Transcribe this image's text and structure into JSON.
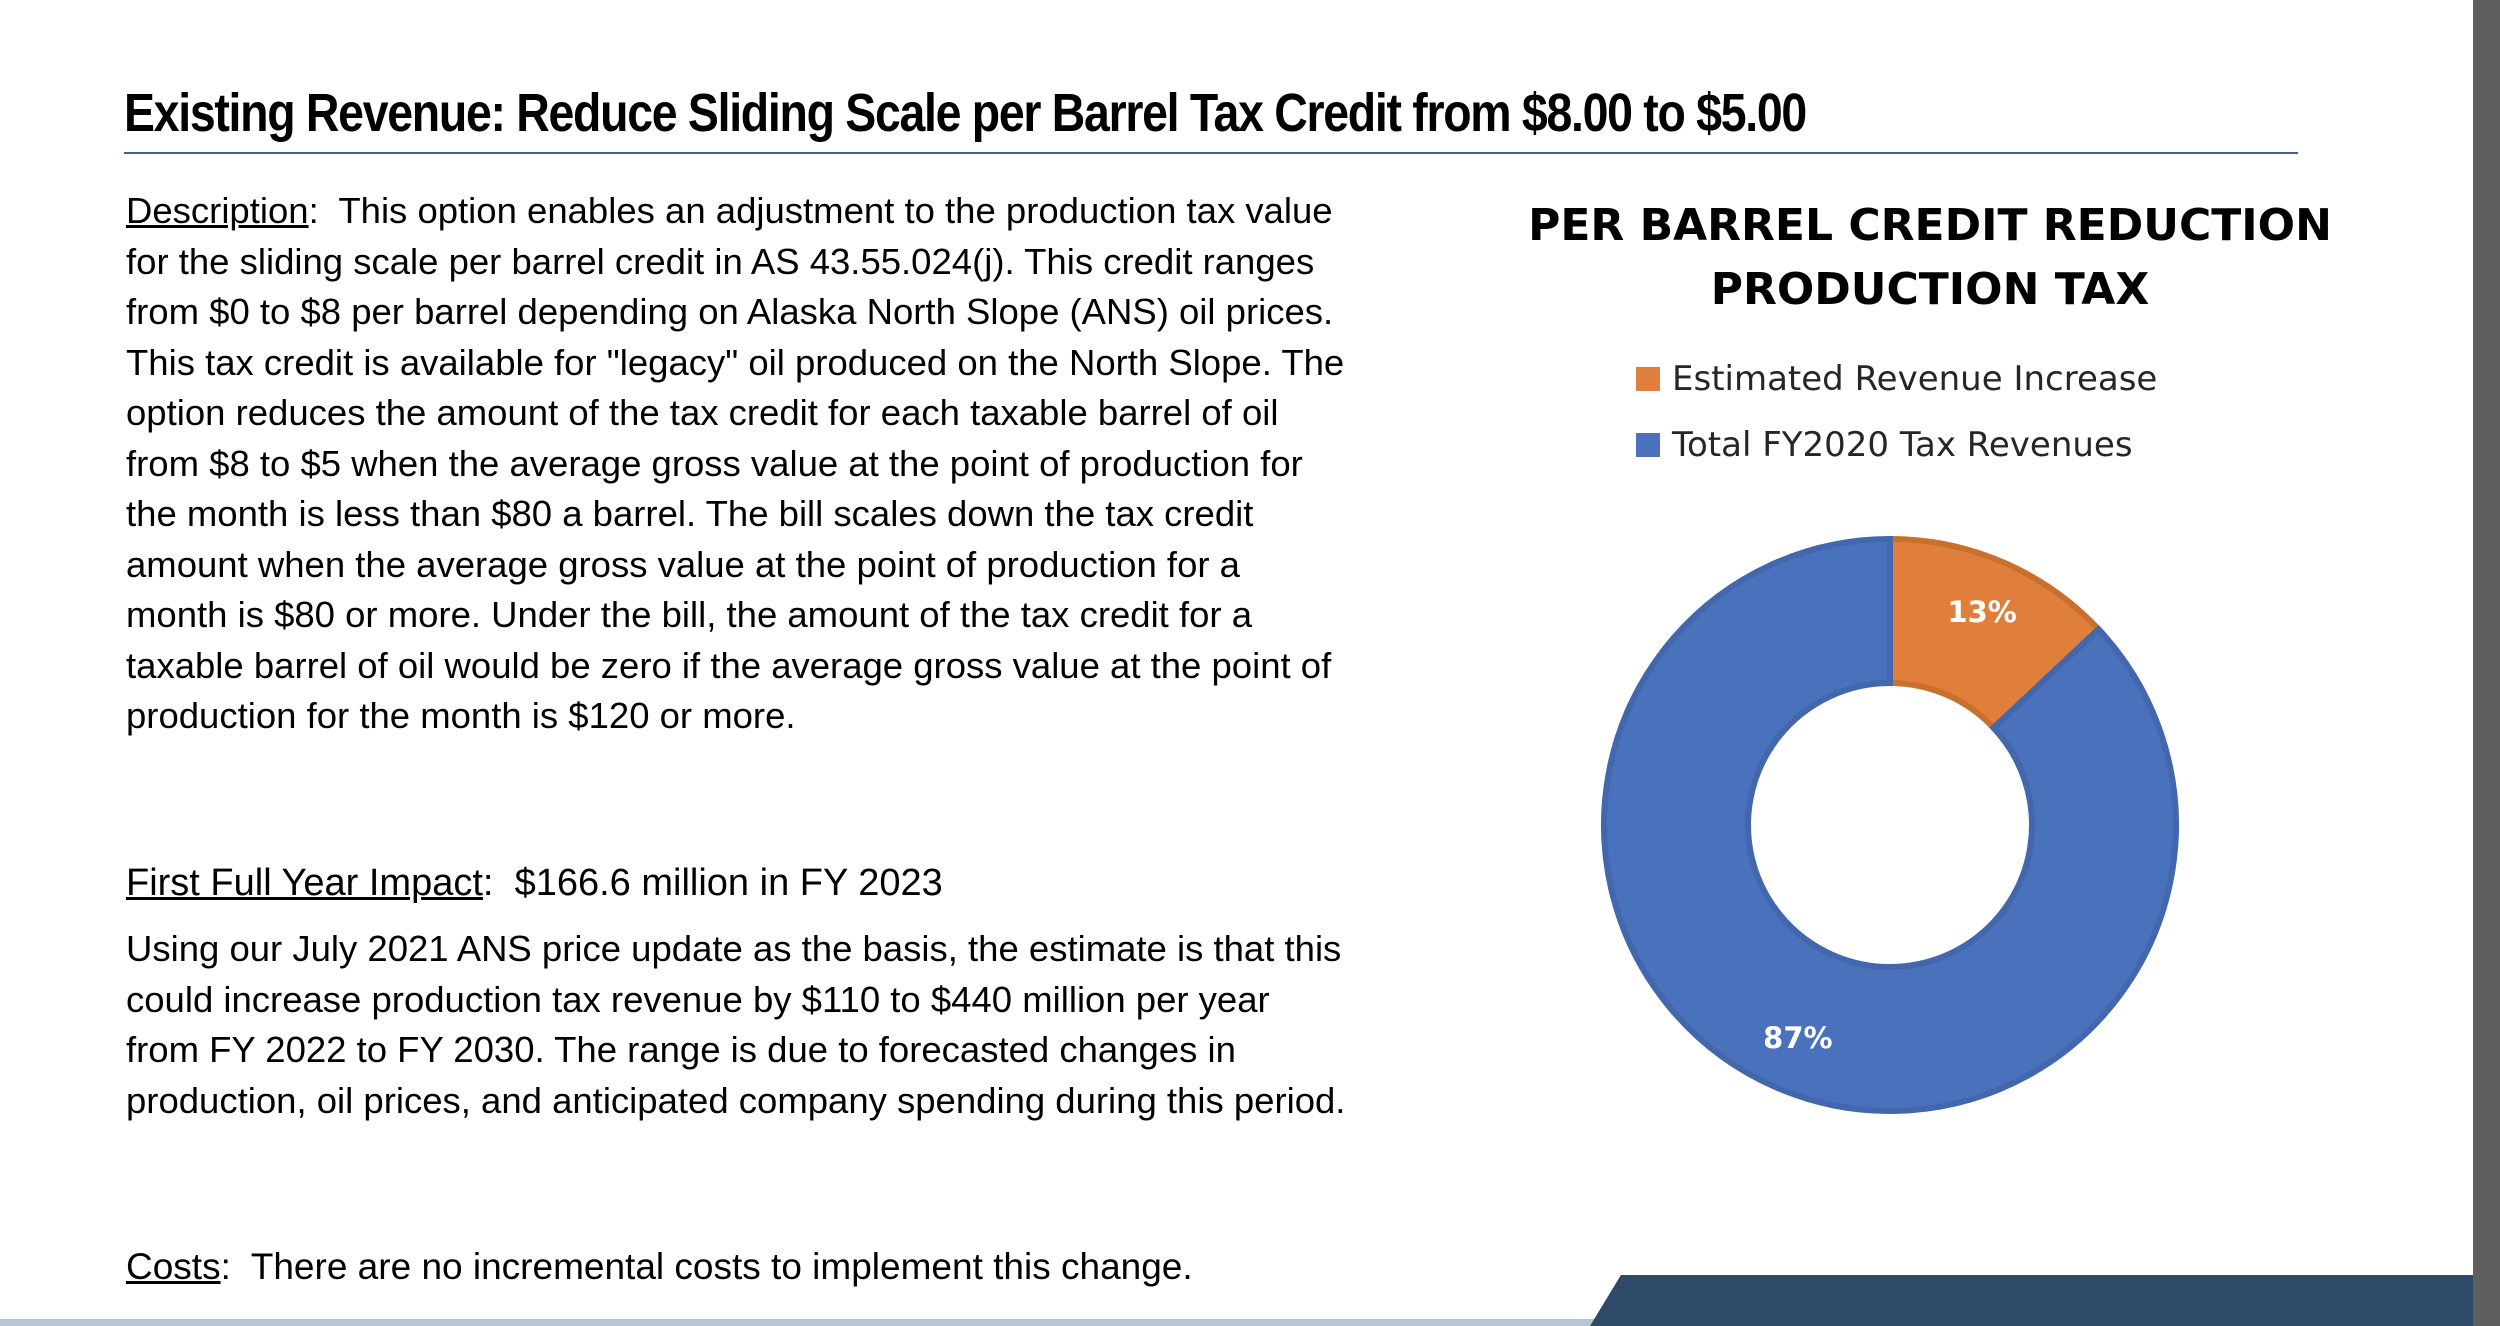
{
  "title": "Existing Revenue:  Reduce Sliding Scale per Barrel Tax Credit from $8.00 to $5.00",
  "description": {
    "label": "Description",
    "text": "This option enables an adjustment to the production tax value for the sliding scale per barrel credit in AS 43.55.024(j). This credit ranges from $0 to $8 per barrel depending on Alaska North Slope (ANS) oil prices. This tax credit is available for \"legacy\" oil produced on the North Slope. The option reduces the amount of the tax credit for each taxable barrel of oil from $8 to $5 when the average gross value at the point of production for the month is less than $80 a barrel. The bill scales down the tax credit amount when the average gross value at the point of production for a month is $80 or more. Under the bill, the amount of the tax credit for a taxable barrel of oil would be zero if the average gross value at the point of production for the month is $120 or more."
  },
  "impact": {
    "label": "First Full Year Impact",
    "value": "$166.6 million in FY 2023",
    "text": "Using our July 2021 ANS price update as the basis, the estimate is that this could increase production tax revenue by $110 to $440 million per year from FY 2022 to FY 2030.  The range is due to forecasted changes in production, oil prices, and anticipated company spending during this period."
  },
  "costs": {
    "label": "Costs",
    "text": "There are no incremental costs to implement this change."
  },
  "chart_data": {
    "type": "pie",
    "title_line1": "PER BARREL CREDIT REDUCTION",
    "title_line2": "PRODUCTION TAX",
    "categories": [
      "Estimated Revenue Increase",
      "Total FY2020 Tax Revenues"
    ],
    "values": [
      13,
      87
    ],
    "labels": [
      "13%",
      "87%"
    ],
    "colors": [
      "#e07f3c",
      "#4a71bc"
    ],
    "legend_position": "top"
  }
}
